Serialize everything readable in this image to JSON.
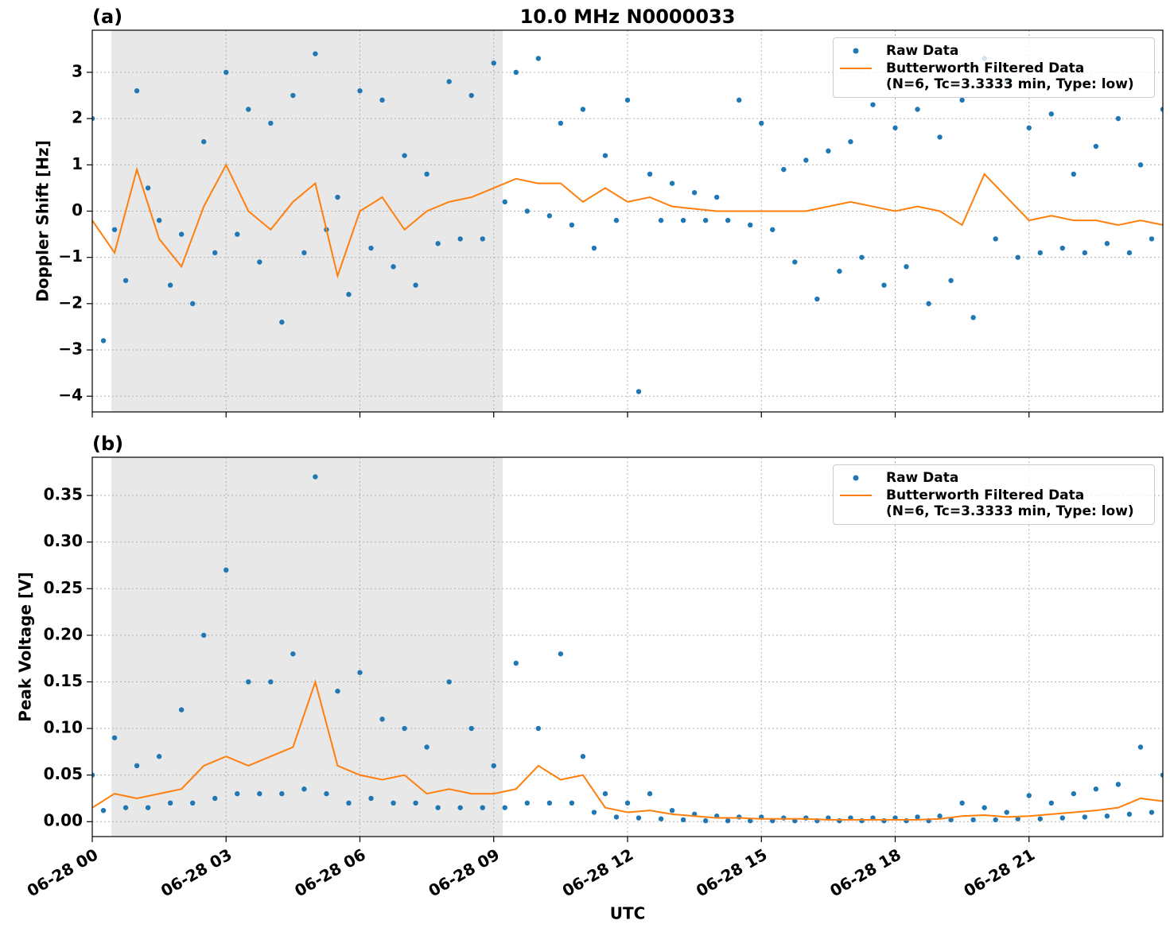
{
  "chart_data": [
    {
      "type": "line",
      "title": "10.0 MHz N0000033",
      "panel_label": "(a)",
      "ylabel": "Doppler Shift [Hz]",
      "xlim": [
        0,
        24
      ],
      "ylim": [
        -4.34,
        3.91
      ],
      "xticks": [
        0,
        3,
        6,
        9,
        12,
        15,
        18,
        21
      ],
      "yticks": [
        {
          "value": -4,
          "label": "−4"
        },
        {
          "value": -3,
          "label": "−3"
        },
        {
          "value": -2,
          "label": "−2"
        },
        {
          "value": -1,
          "label": "−1"
        },
        0,
        1,
        2,
        3
      ],
      "grid": true,
      "legend": "upper right",
      "shaded_span": [
        0.43,
        9.2
      ],
      "shade_color": "#e8e8e8",
      "series": [
        {
          "name": "Raw Data",
          "style": "points",
          "color": "#1f77b4",
          "x": [
            0,
            0.25,
            0.5,
            0.75,
            1,
            1.25,
            1.5,
            1.75,
            2,
            2.25,
            2.5,
            2.75,
            3,
            3.25,
            3.5,
            3.75,
            4,
            4.25,
            4.5,
            4.75,
            5,
            5.25,
            5.5,
            5.75,
            6,
            6.25,
            6.5,
            6.75,
            7,
            7.25,
            7.5,
            7.75,
            8,
            8.25,
            8.5,
            8.75,
            9,
            9.25,
            9.5,
            9.75,
            10,
            10.25,
            10.5,
            10.75,
            11,
            11.25,
            11.5,
            11.75,
            12,
            12.25,
            12.5,
            12.75,
            13,
            13.25,
            13.5,
            13.75,
            14,
            14.25,
            14.5,
            14.75,
            15,
            15.25,
            15.5,
            15.75,
            16,
            16.25,
            16.5,
            16.75,
            17,
            17.25,
            17.5,
            17.75,
            18,
            18.25,
            18.5,
            18.75,
            19,
            19.25,
            19.5,
            19.75,
            20,
            20.25,
            20.5,
            20.75,
            21,
            21.25,
            21.5,
            21.75,
            22,
            22.25,
            22.5,
            22.75,
            23,
            23.25,
            23.5,
            23.75,
            24
          ],
          "values": [
            2.0,
            -2.8,
            -0.4,
            -1.5,
            2.6,
            0.5,
            -0.2,
            -1.6,
            -0.5,
            -2.0,
            1.5,
            -0.9,
            3.0,
            -0.5,
            2.2,
            -1.1,
            1.9,
            -2.4,
            2.5,
            -0.9,
            3.4,
            -0.4,
            0.3,
            -1.8,
            2.6,
            -0.8,
            2.4,
            -1.2,
            1.2,
            -1.6,
            0.8,
            -0.7,
            2.8,
            -0.6,
            2.5,
            -0.6,
            3.2,
            0.2,
            3.0,
            0.0,
            3.3,
            -0.1,
            1.9,
            -0.3,
            2.2,
            -0.8,
            1.2,
            -0.2,
            2.4,
            -3.9,
            0.8,
            -0.2,
            0.6,
            -0.2,
            0.4,
            -0.2,
            0.3,
            -0.2,
            2.4,
            -0.3,
            1.9,
            -0.4,
            0.9,
            -1.1,
            1.1,
            -1.9,
            1.3,
            -1.3,
            1.5,
            -1.0,
            2.3,
            -1.6,
            1.8,
            -1.2,
            2.2,
            -2.0,
            1.6,
            -1.5,
            2.4,
            -2.3,
            3.3,
            -0.6,
            2.8,
            -1.0,
            1.8,
            -0.9,
            2.1,
            -0.8,
            0.8,
            -0.9,
            1.4,
            -0.7,
            2.0,
            -0.9,
            1.0,
            -0.6,
            2.2
          ]
        },
        {
          "name": "Butterworth Filtered Data\n(N=6, Tc=3.3333 min, Type: low)",
          "style": "line",
          "color": "#ff7f0e",
          "x": [
            0,
            0.5,
            1,
            1.5,
            2,
            2.5,
            3,
            3.5,
            4,
            4.5,
            5,
            5.5,
            6,
            6.5,
            7,
            7.5,
            8,
            8.5,
            9,
            9.5,
            10,
            10.5,
            11,
            11.5,
            12,
            12.5,
            13,
            13.5,
            14,
            14.5,
            15,
            15.5,
            16,
            16.5,
            17,
            17.5,
            18,
            18.5,
            19,
            19.5,
            20,
            20.5,
            21,
            21.5,
            22,
            22.5,
            23,
            23.5,
            24
          ],
          "values": [
            -0.2,
            -0.9,
            0.9,
            -0.6,
            -1.2,
            0.1,
            1.0,
            0.0,
            -0.4,
            0.2,
            0.6,
            -1.4,
            0.0,
            0.3,
            -0.4,
            0.0,
            0.2,
            0.3,
            0.5,
            0.7,
            0.6,
            0.6,
            0.2,
            0.5,
            0.2,
            0.3,
            0.1,
            0.05,
            0.0,
            0.0,
            0.0,
            0.0,
            0.0,
            0.1,
            0.2,
            0.1,
            0.0,
            0.1,
            0.0,
            -0.3,
            0.8,
            0.3,
            -0.2,
            -0.1,
            -0.2,
            -0.2,
            -0.3,
            -0.2,
            -0.3
          ]
        }
      ]
    },
    {
      "type": "line",
      "panel_label": "(b)",
      "ylabel": "Peak Voltage [V]",
      "xlabel": "UTC",
      "xlim": [
        0,
        24
      ],
      "ylim": [
        -0.016,
        0.391
      ],
      "xticks": [
        {
          "value": 0,
          "label": "06-28 00"
        },
        {
          "value": 3,
          "label": "06-28 03"
        },
        {
          "value": 6,
          "label": "06-28 06"
        },
        {
          "value": 9,
          "label": "06-28 09"
        },
        {
          "value": 12,
          "label": "06-28 12"
        },
        {
          "value": 15,
          "label": "06-28 15"
        },
        {
          "value": 18,
          "label": "06-28 18"
        },
        {
          "value": 21,
          "label": "06-28 21"
        }
      ],
      "yticks": [
        {
          "value": 0,
          "label": "0.00"
        },
        {
          "value": 0.05,
          "label": "0.05"
        },
        {
          "value": 0.1,
          "label": "0.10"
        },
        {
          "value": 0.15,
          "label": "0.15"
        },
        {
          "value": 0.2,
          "label": "0.20"
        },
        {
          "value": 0.25,
          "label": "0.25"
        },
        {
          "value": 0.3,
          "label": "0.30"
        },
        {
          "value": 0.35,
          "label": "0.35"
        }
      ],
      "grid": true,
      "legend": "upper right",
      "shaded_span": [
        0.43,
        9.2
      ],
      "shade_color": "#e8e8e8",
      "series": [
        {
          "name": "Raw Data",
          "style": "points",
          "color": "#1f77b4",
          "x": [
            0,
            0.25,
            0.5,
            0.75,
            1,
            1.25,
            1.5,
            1.75,
            2,
            2.25,
            2.5,
            2.75,
            3,
            3.25,
            3.5,
            3.75,
            4,
            4.25,
            4.5,
            4.75,
            5,
            5.25,
            5.5,
            5.75,
            6,
            6.25,
            6.5,
            6.75,
            7,
            7.25,
            7.5,
            7.75,
            8,
            8.25,
            8.5,
            8.75,
            9,
            9.25,
            9.5,
            9.75,
            10,
            10.25,
            10.5,
            10.75,
            11,
            11.25,
            11.5,
            11.75,
            12,
            12.25,
            12.5,
            12.75,
            13,
            13.25,
            13.5,
            13.75,
            14,
            14.25,
            14.5,
            14.75,
            15,
            15.25,
            15.5,
            15.75,
            16,
            16.25,
            16.5,
            16.75,
            17,
            17.25,
            17.5,
            17.75,
            18,
            18.25,
            18.5,
            18.75,
            19,
            19.25,
            19.5,
            19.75,
            20,
            20.25,
            20.5,
            20.75,
            21,
            21.25,
            21.5,
            21.75,
            22,
            22.25,
            22.5,
            22.75,
            23,
            23.25,
            23.5,
            23.75,
            24
          ],
          "values": [
            0.05,
            0.012,
            0.09,
            0.015,
            0.06,
            0.015,
            0.07,
            0.02,
            0.12,
            0.02,
            0.2,
            0.025,
            0.27,
            0.03,
            0.15,
            0.03,
            0.15,
            0.03,
            0.18,
            0.035,
            0.37,
            0.03,
            0.14,
            0.02,
            0.16,
            0.025,
            0.11,
            0.02,
            0.1,
            0.02,
            0.08,
            0.015,
            0.15,
            0.015,
            0.1,
            0.015,
            0.06,
            0.015,
            0.17,
            0.02,
            0.1,
            0.02,
            0.18,
            0.02,
            0.07,
            0.01,
            0.03,
            0.005,
            0.02,
            0.004,
            0.03,
            0.003,
            0.012,
            0.002,
            0.008,
            0.001,
            0.006,
            0.001,
            0.005,
            0.001,
            0.005,
            0.001,
            0.004,
            0.001,
            0.004,
            0.001,
            0.004,
            0.001,
            0.004,
            0.001,
            0.004,
            0.001,
            0.004,
            0.001,
            0.005,
            0.001,
            0.006,
            0.002,
            0.02,
            0.002,
            0.015,
            0.002,
            0.01,
            0.003,
            0.028,
            0.003,
            0.02,
            0.004,
            0.03,
            0.005,
            0.035,
            0.006,
            0.04,
            0.008,
            0.08,
            0.01,
            0.05
          ]
        },
        {
          "name": "Butterworth Filtered Data\n(N=6, Tc=3.3333 min, Type: low)",
          "style": "line",
          "color": "#ff7f0e",
          "x": [
            0,
            0.5,
            1,
            1.5,
            2,
            2.5,
            3,
            3.5,
            4,
            4.5,
            5,
            5.5,
            6,
            6.5,
            7,
            7.5,
            8,
            8.5,
            9,
            9.5,
            10,
            10.5,
            11,
            11.5,
            12,
            12.5,
            13,
            13.5,
            14,
            14.5,
            15,
            15.5,
            16,
            16.5,
            17,
            17.5,
            18,
            18.5,
            19,
            19.5,
            20,
            20.5,
            21,
            21.5,
            22,
            22.5,
            23,
            23.5,
            24
          ],
          "values": [
            0.015,
            0.03,
            0.025,
            0.03,
            0.035,
            0.06,
            0.07,
            0.06,
            0.07,
            0.08,
            0.15,
            0.06,
            0.05,
            0.045,
            0.05,
            0.03,
            0.035,
            0.03,
            0.03,
            0.035,
            0.06,
            0.045,
            0.05,
            0.015,
            0.01,
            0.012,
            0.008,
            0.006,
            0.004,
            0.004,
            0.003,
            0.003,
            0.003,
            0.002,
            0.002,
            0.002,
            0.002,
            0.002,
            0.003,
            0.006,
            0.007,
            0.005,
            0.006,
            0.008,
            0.01,
            0.012,
            0.015,
            0.025,
            0.022
          ]
        }
      ]
    }
  ]
}
